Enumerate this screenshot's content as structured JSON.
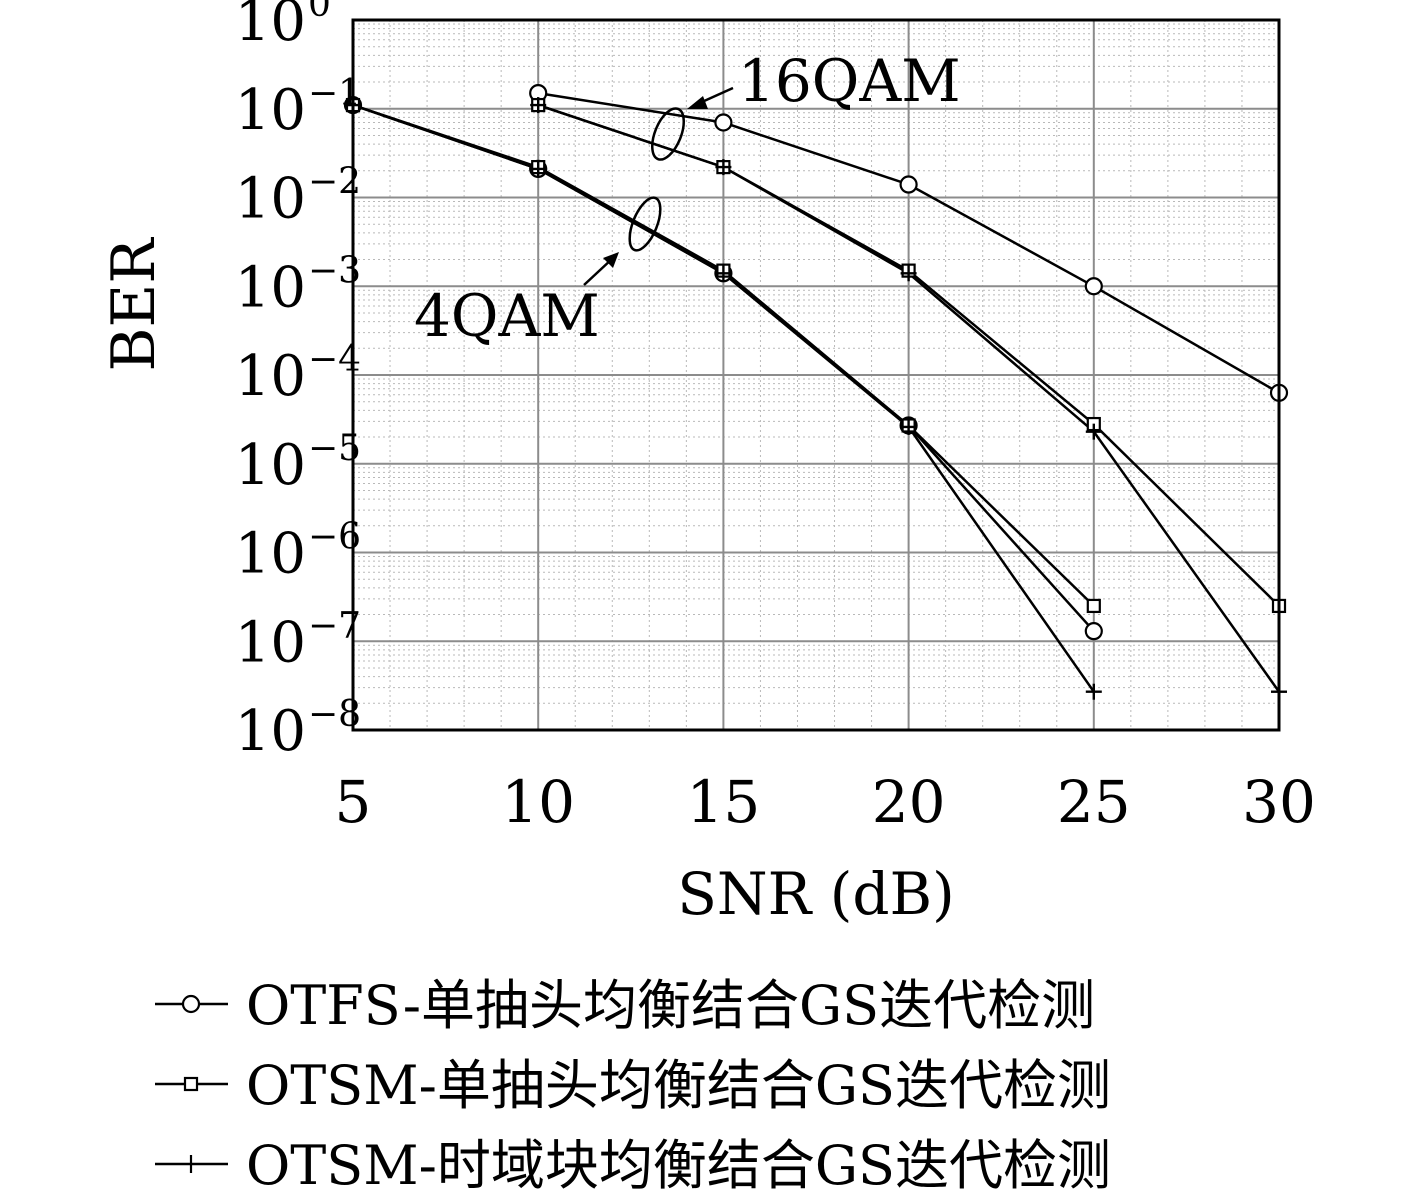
{
  "chart_data": {
    "type": "line",
    "x_scale": "linear",
    "y_scale": "log",
    "xlim": [
      5,
      30
    ],
    "ylim": [
      1e-08,
      1
    ],
    "grid": true,
    "xlabel": "SNR (dB)",
    "ylabel": "BER",
    "x_ticks": [
      "5",
      "10",
      "15",
      "20",
      "25",
      "30"
    ],
    "y_ticks": [
      {
        "base": "10",
        "exp": "0"
      },
      {
        "base": "10",
        "exp": "−1"
      },
      {
        "base": "10",
        "exp": "−2"
      },
      {
        "base": "10",
        "exp": "−3"
      },
      {
        "base": "10",
        "exp": "−4"
      },
      {
        "base": "10",
        "exp": "−5"
      },
      {
        "base": "10",
        "exp": "−6"
      },
      {
        "base": "10",
        "exp": "−7"
      },
      {
        "base": "10",
        "exp": "−8"
      }
    ],
    "annotations": [
      {
        "text": "16QAM"
      },
      {
        "text": "4QAM"
      }
    ],
    "legend_position": "bottom",
    "series": [
      {
        "name": "OTFS-单抽头均衡结合GS迭代检测",
        "group": "16QAM",
        "marker": "circle",
        "x": [
          10,
          15,
          20,
          25,
          30
        ],
        "y": [
          0.15,
          0.07,
          0.014,
          0.001,
          6.3e-05
        ]
      },
      {
        "name": "OTSM-单抽头均衡结合GS迭代检测",
        "group": "16QAM",
        "marker": "square",
        "x": [
          10,
          15,
          20,
          25,
          30
        ],
        "y": [
          0.11,
          0.022,
          0.0015,
          2.8e-05,
          2.5e-07
        ]
      },
      {
        "name": "OTSM-时域块均衡结合GS迭代检测",
        "group": "16QAM",
        "marker": "plus",
        "x": [
          10,
          15,
          20,
          25,
          30
        ],
        "y": [
          0.11,
          0.022,
          0.0014,
          2.3e-05,
          2.7e-08
        ]
      },
      {
        "name": "OTFS-单抽头均衡结合GS迭代检测",
        "group": "4QAM",
        "marker": "circle",
        "x": [
          5,
          10,
          15,
          20,
          25
        ],
        "y": [
          0.11,
          0.021,
          0.0014,
          2.7e-05,
          1.3e-07
        ]
      },
      {
        "name": "OTSM-单抽头均衡结合GS迭代检测",
        "group": "4QAM",
        "marker": "square",
        "x": [
          5,
          10,
          15,
          20,
          25
        ],
        "y": [
          0.11,
          0.022,
          0.0015,
          2.7e-05,
          2.5e-07
        ]
      },
      {
        "name": "OTSM-时域块均衡结合GS迭代检测",
        "group": "4QAM",
        "marker": "plus",
        "x": [
          5,
          10,
          15,
          20,
          25
        ],
        "y": [
          0.11,
          0.021,
          0.0014,
          2.6e-05,
          2.7e-08
        ]
      }
    ],
    "legend": [
      {
        "label": "OTFS-单抽头均衡结合GS迭代检测",
        "marker": "circle"
      },
      {
        "label": "OTSM-单抽头均衡结合GS迭代检测",
        "marker": "square"
      },
      {
        "label": "OTSM-时域块均衡结合GS迭代检测",
        "marker": "plus"
      }
    ]
  }
}
